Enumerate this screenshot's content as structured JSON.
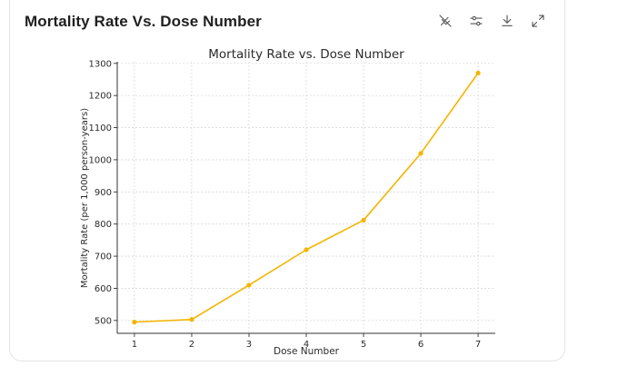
{
  "card": {
    "title": "Mortality Rate Vs. Dose Number"
  },
  "toolbar": {
    "icons": [
      "interactive-off-icon",
      "filter-settings-icon",
      "download-icon",
      "expand-icon"
    ]
  },
  "colors": {
    "line": "#f4b400",
    "grid": "#d9d9d9",
    "axis": "#333333"
  },
  "chart_data": {
    "type": "line",
    "title": "Mortality Rate vs. Dose Number",
    "xlabel": "Dose Number",
    "ylabel": "Mortality Rate (per 1,000 person-years)",
    "x": [
      1,
      2,
      3,
      4,
      5,
      6,
      7
    ],
    "xticks": [
      "1",
      "2",
      "3",
      "4",
      "5",
      "6",
      "7"
    ],
    "xlim": [
      0.7,
      7.3
    ],
    "series": [
      {
        "name": "Mortality Rate",
        "values": [
          495,
          503,
          610,
          720,
          812,
          1020,
          1270
        ]
      }
    ],
    "yticks": [
      500,
      600,
      700,
      800,
      900,
      1000,
      1100,
      1200,
      1300
    ],
    "ylim": [
      460,
      1305
    ],
    "grid": true,
    "markers": true
  }
}
